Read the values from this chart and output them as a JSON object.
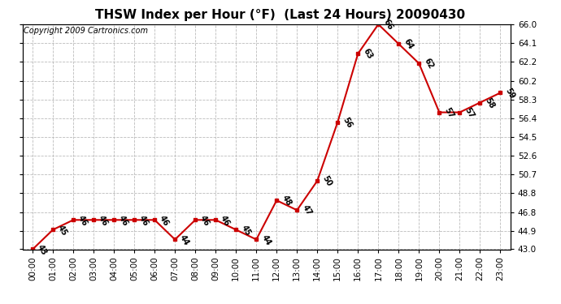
{
  "title": "THSW Index per Hour (°F)  (Last 24 Hours) 20090430",
  "copyright": "Copyright 2009 Cartronics.com",
  "hours": [
    "00:00",
    "01:00",
    "02:00",
    "03:00",
    "04:00",
    "05:00",
    "06:00",
    "07:00",
    "08:00",
    "09:00",
    "10:00",
    "11:00",
    "12:00",
    "13:00",
    "14:00",
    "15:00",
    "16:00",
    "17:00",
    "18:00",
    "19:00",
    "20:00",
    "21:00",
    "22:00",
    "23:00"
  ],
  "values": [
    43,
    45,
    46,
    46,
    46,
    46,
    46,
    44,
    46,
    46,
    45,
    44,
    48,
    47,
    50,
    56,
    63,
    66,
    64,
    62,
    57,
    57,
    58,
    59
  ],
  "ylim_min": 43.0,
  "ylim_max": 66.0,
  "yticks": [
    43.0,
    44.9,
    46.8,
    48.8,
    50.7,
    52.6,
    54.5,
    56.4,
    58.3,
    60.2,
    62.2,
    64.1,
    66.0
  ],
  "ytick_labels": [
    "43.0",
    "44.9",
    "46.8",
    "48.8",
    "50.7",
    "52.6",
    "54.5",
    "56.4",
    "58.3",
    "60.2",
    "62.2",
    "64.1",
    "66.0"
  ],
  "line_color": "#cc0000",
  "marker_color": "#cc0000",
  "bg_color": "#ffffff",
  "grid_color": "#bbbbbb",
  "title_fontsize": 11,
  "copyright_fontsize": 7,
  "label_fontsize": 7,
  "tick_fontsize": 7.5
}
